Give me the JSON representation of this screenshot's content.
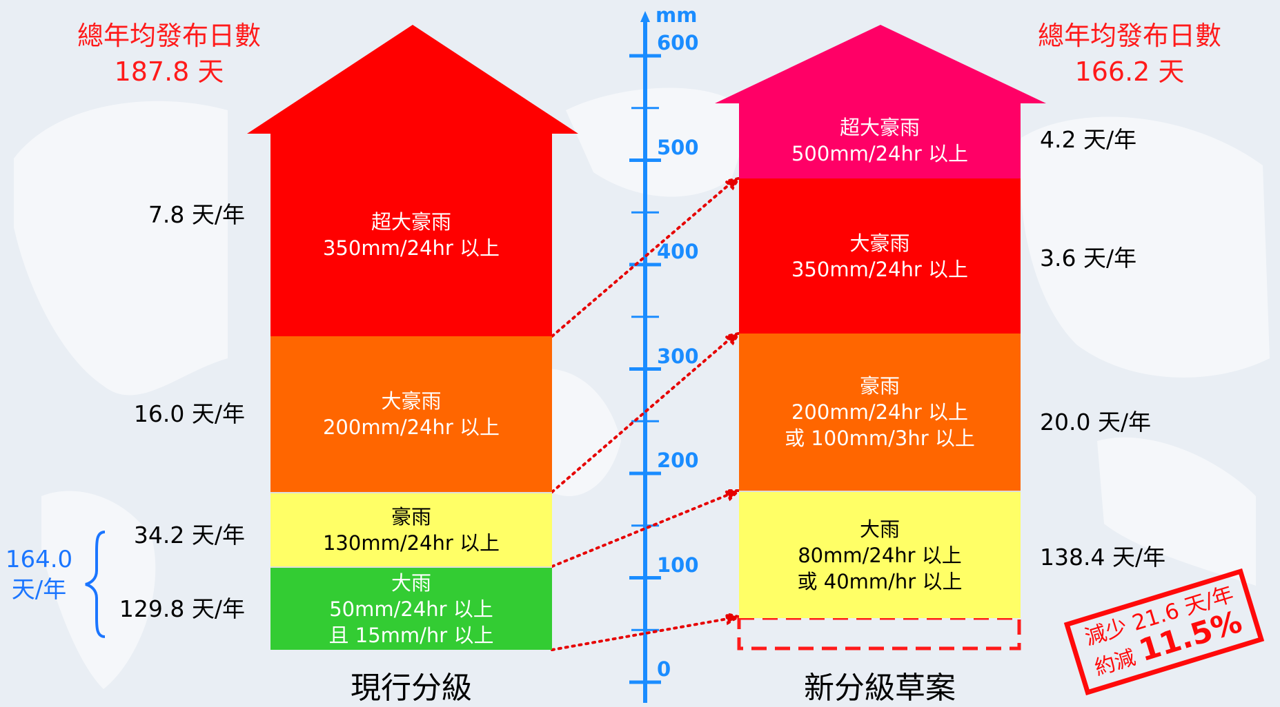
{
  "scale": {
    "unit": "mm",
    "ticks": [
      "600",
      "500",
      "400",
      "300",
      "200",
      "100",
      "0"
    ]
  },
  "current": {
    "summary_title": "總年均發布日數",
    "summary_value": "187.8 天",
    "label": "現行分級",
    "tiers": [
      {
        "name": "超大豪雨",
        "desc": [
          "350mm/24hr 以上"
        ],
        "days": "7.8 天/年",
        "color": "#ff0000",
        "text_color": "#ffffff"
      },
      {
        "name": "大豪雨",
        "desc": [
          "200mm/24hr 以上"
        ],
        "days": "16.0 天/年",
        "color": "#ff6600",
        "text_color": "#ffffff"
      },
      {
        "name": "豪雨",
        "desc": [
          "130mm/24hr 以上"
        ],
        "days": "34.2 天/年",
        "color": "#ffff66",
        "text_color": "#000000"
      },
      {
        "name": "大雨",
        "desc": [
          "50mm/24hr 以上",
          "且 15mm/hr 以上"
        ],
        "days": "129.8 天/年",
        "color": "#33cc33",
        "text_color": "#ffffff"
      }
    ],
    "bracket_total": [
      "164.0",
      "天/年"
    ]
  },
  "draft": {
    "summary_title": "總年均發布日數",
    "summary_value": "166.2 天",
    "label": "新分級草案",
    "tiers": [
      {
        "name": "超大豪雨",
        "desc": [
          "500mm/24hr 以上"
        ],
        "days": "4.2 天/年",
        "color": "#ff0066",
        "text_color": "#ffffff"
      },
      {
        "name": "大豪雨",
        "desc": [
          "350mm/24hr 以上"
        ],
        "days": "3.6 天/年",
        "color": "#ff0000",
        "text_color": "#ffffff"
      },
      {
        "name": "豪雨",
        "desc": [
          "200mm/24hr 以上",
          "或 100mm/3hr 以上"
        ],
        "days": "20.0 天/年",
        "color": "#ff6600",
        "text_color": "#ffffff"
      },
      {
        "name": "大雨",
        "desc": [
          "80mm/24hr 以上",
          "或 40mm/hr 以上"
        ],
        "days": "138.4 天/年",
        "color": "#ffff66",
        "text_color": "#000000"
      }
    ]
  },
  "stamp": {
    "line1": "減少 21.6 天/年",
    "line2_prefix": "約減 ",
    "line2_value": "11.5%"
  },
  "colors": {
    "accent_red": "#ff1a1a",
    "axis_blue": "#1a8cff",
    "dotted_line": "#e60000"
  }
}
